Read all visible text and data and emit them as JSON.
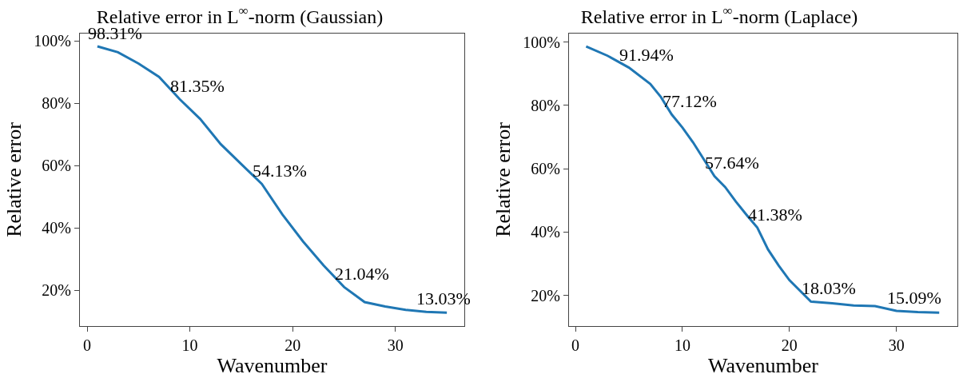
{
  "chart_data": [
    {
      "type": "line",
      "title": "Relative error in L$^{∞}$-norm (Gaussian)",
      "xlabel": "Wavenumber",
      "ylabel": "Relative error",
      "x": [
        1,
        3,
        5,
        7,
        9,
        11,
        13,
        15,
        17,
        19,
        21,
        23,
        25,
        27,
        29,
        31,
        33,
        35
      ],
      "values": [
        98.31,
        96.4,
        92.8,
        88.5,
        81.35,
        75.0,
        66.9,
        60.5,
        54.13,
        44.3,
        35.7,
        28.0,
        21.04,
        16.2,
        14.8,
        13.7,
        13.03,
        12.8
      ],
      "value_labels": [
        "98.31%",
        null,
        null,
        null,
        "81.35%",
        null,
        null,
        null,
        "54.13%",
        null,
        null,
        null,
        "21.04%",
        null,
        null,
        null,
        "13.03%",
        null
      ],
      "color": "#1f77b4",
      "xlim": [
        -0.7,
        36.7
      ],
      "ylim": [
        8.5,
        102.4
      ],
      "xticks": [
        0,
        10,
        20,
        30
      ],
      "yticks": [
        {
          "value": 20,
          "label": "20%"
        },
        {
          "value": 40,
          "label": "40%"
        },
        {
          "value": 60,
          "label": "60%"
        },
        {
          "value": 80,
          "label": "80%"
        },
        {
          "value": 100,
          "label": "100%"
        }
      ],
      "grid": false,
      "legend": false,
      "marker": "none",
      "line_style": "solid"
    },
    {
      "type": "line",
      "title": "Relative error in L$^{∞}$-norm (Laplace)",
      "xlabel": "Wavenumber",
      "ylabel": "Relative error",
      "x": [
        1,
        3,
        5,
        7,
        8,
        9,
        10,
        11,
        13,
        14,
        15,
        16,
        17,
        18,
        19,
        20,
        22,
        24,
        26,
        28,
        30,
        32,
        34
      ],
      "values": [
        98.6,
        95.7,
        91.94,
        86.8,
        82.6,
        77.12,
        73.0,
        68.3,
        57.64,
        54.2,
        49.6,
        45.4,
        41.38,
        34.5,
        29.4,
        24.8,
        18.03,
        17.5,
        16.8,
        16.6,
        15.09,
        14.7,
        14.5
      ],
      "value_labels": [
        null,
        null,
        "91.94%",
        null,
        null,
        "77.12%",
        null,
        null,
        "57.64%",
        null,
        null,
        null,
        "41.38%",
        null,
        null,
        null,
        "18.03%",
        null,
        null,
        null,
        "15.09%",
        null,
        null
      ],
      "color": "#1f77b4",
      "xlim": [
        -0.6,
        35.7
      ],
      "ylim": [
        10.3,
        102.7
      ],
      "xticks": [
        0,
        10,
        20,
        30
      ],
      "yticks": [
        {
          "value": 20,
          "label": "20%"
        },
        {
          "value": 40,
          "label": "40%"
        },
        {
          "value": 60,
          "label": "60%"
        },
        {
          "value": 80,
          "label": "80%"
        },
        {
          "value": 100,
          "label": "100%"
        }
      ],
      "grid": false,
      "legend": false,
      "marker": "none",
      "line_style": "solid"
    }
  ]
}
